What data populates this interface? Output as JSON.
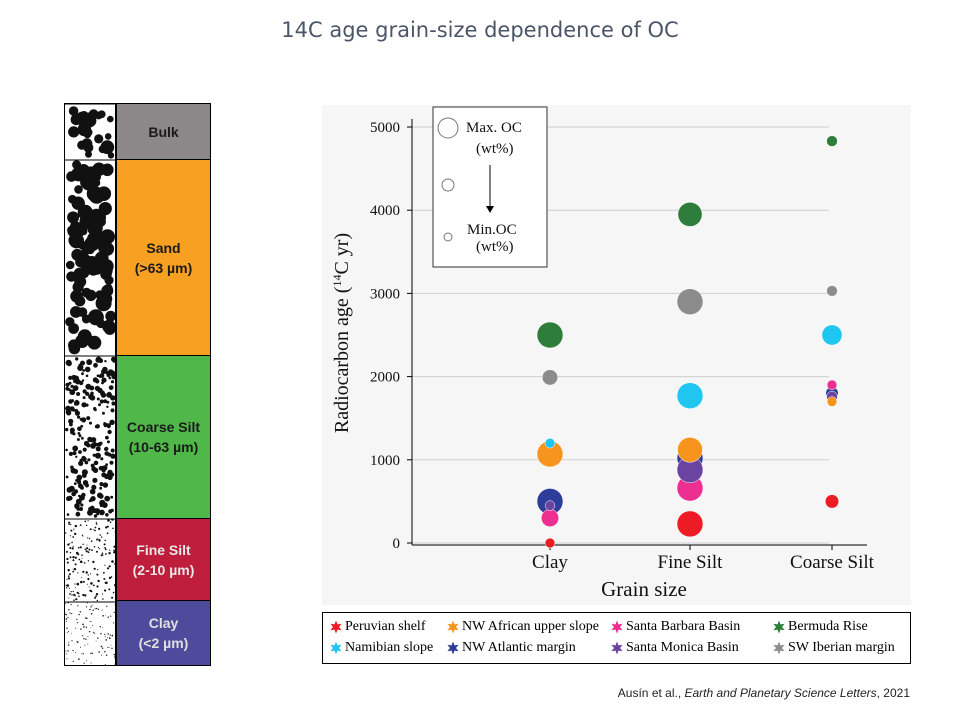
{
  "title": "14C age grain-size dependence of OC",
  "strata": [
    {
      "label": "Bulk",
      "color": "#8c8889",
      "top": 0
    },
    {
      "label": "Sand\n(>63 µm)",
      "color": "#f7a022",
      "top": 0
    },
    {
      "label": "Coarse Silt\n(10-63 µm)",
      "color": "#4fb849",
      "top": 0
    },
    {
      "label": "Fine Silt\n(2-10 µm)",
      "color": "#be1e3b",
      "top": 0
    },
    {
      "label": "Clay\n(<2 µm)",
      "color": "#4e4b9c",
      "top": 0
    }
  ],
  "chart_data": {
    "type": "scatter",
    "xlabel": "Grain size",
    "ylabel": "Radiocarbon age (14C yr)",
    "categories": [
      "Clay",
      "Fine Silt",
      "Coarse Silt"
    ],
    "y_ticks": [
      0,
      1000,
      2000,
      3000,
      4000,
      5000
    ],
    "ylim": [
      0,
      5000
    ],
    "grid": "horizontal",
    "size_legend": {
      "max_label": "Max. OC",
      "min_label": "Min.OC",
      "unit": "(wt%)"
    },
    "series": [
      {
        "name": "Peruvian shelf",
        "color": "#ed1c24",
        "values": [
          0,
          230,
          500
        ],
        "size": [
          0.15,
          1.0,
          0.35
        ]
      },
      {
        "name": "NW African upper slope",
        "color": "#f7941d",
        "values": [
          1070,
          1120,
          1700
        ],
        "size": [
          1.0,
          0.95,
          0.15
        ]
      },
      {
        "name": "Santa Barbara Basin",
        "color": "#ec2f91",
        "values": [
          300,
          660,
          1900
        ],
        "size": [
          0.55,
          1.0,
          0.15
        ]
      },
      {
        "name": "Bermuda Rise",
        "color": "#2e7d3a",
        "values": [
          2500,
          3950,
          4830
        ],
        "size": [
          1.0,
          0.9,
          0.2
        ]
      },
      {
        "name": "Namibian slope",
        "color": "#1ec6f0",
        "values": [
          1200,
          1770,
          2500
        ],
        "size": [
          0.15,
          1.0,
          0.7
        ]
      },
      {
        "name": "NW Atlantic margin",
        "color": "#2e3d9a",
        "values": [
          500,
          1020,
          1800
        ],
        "size": [
          1.0,
          1.0,
          0.3
        ]
      },
      {
        "name": "Santa Monica Basin",
        "color": "#6a44a0",
        "values": [
          450,
          880,
          1760
        ],
        "size": [
          0.15,
          1.0,
          0.2
        ]
      },
      {
        "name": "SW Iberian margin",
        "color": "#8c8c8c",
        "values": [
          1990,
          2900,
          3030
        ],
        "size": [
          0.45,
          1.0,
          0.2
        ]
      }
    ]
  },
  "citation": {
    "authors": "Ausín et al., ",
    "journal": "Earth and Planetary Science Letters",
    "year": ", 2021"
  }
}
